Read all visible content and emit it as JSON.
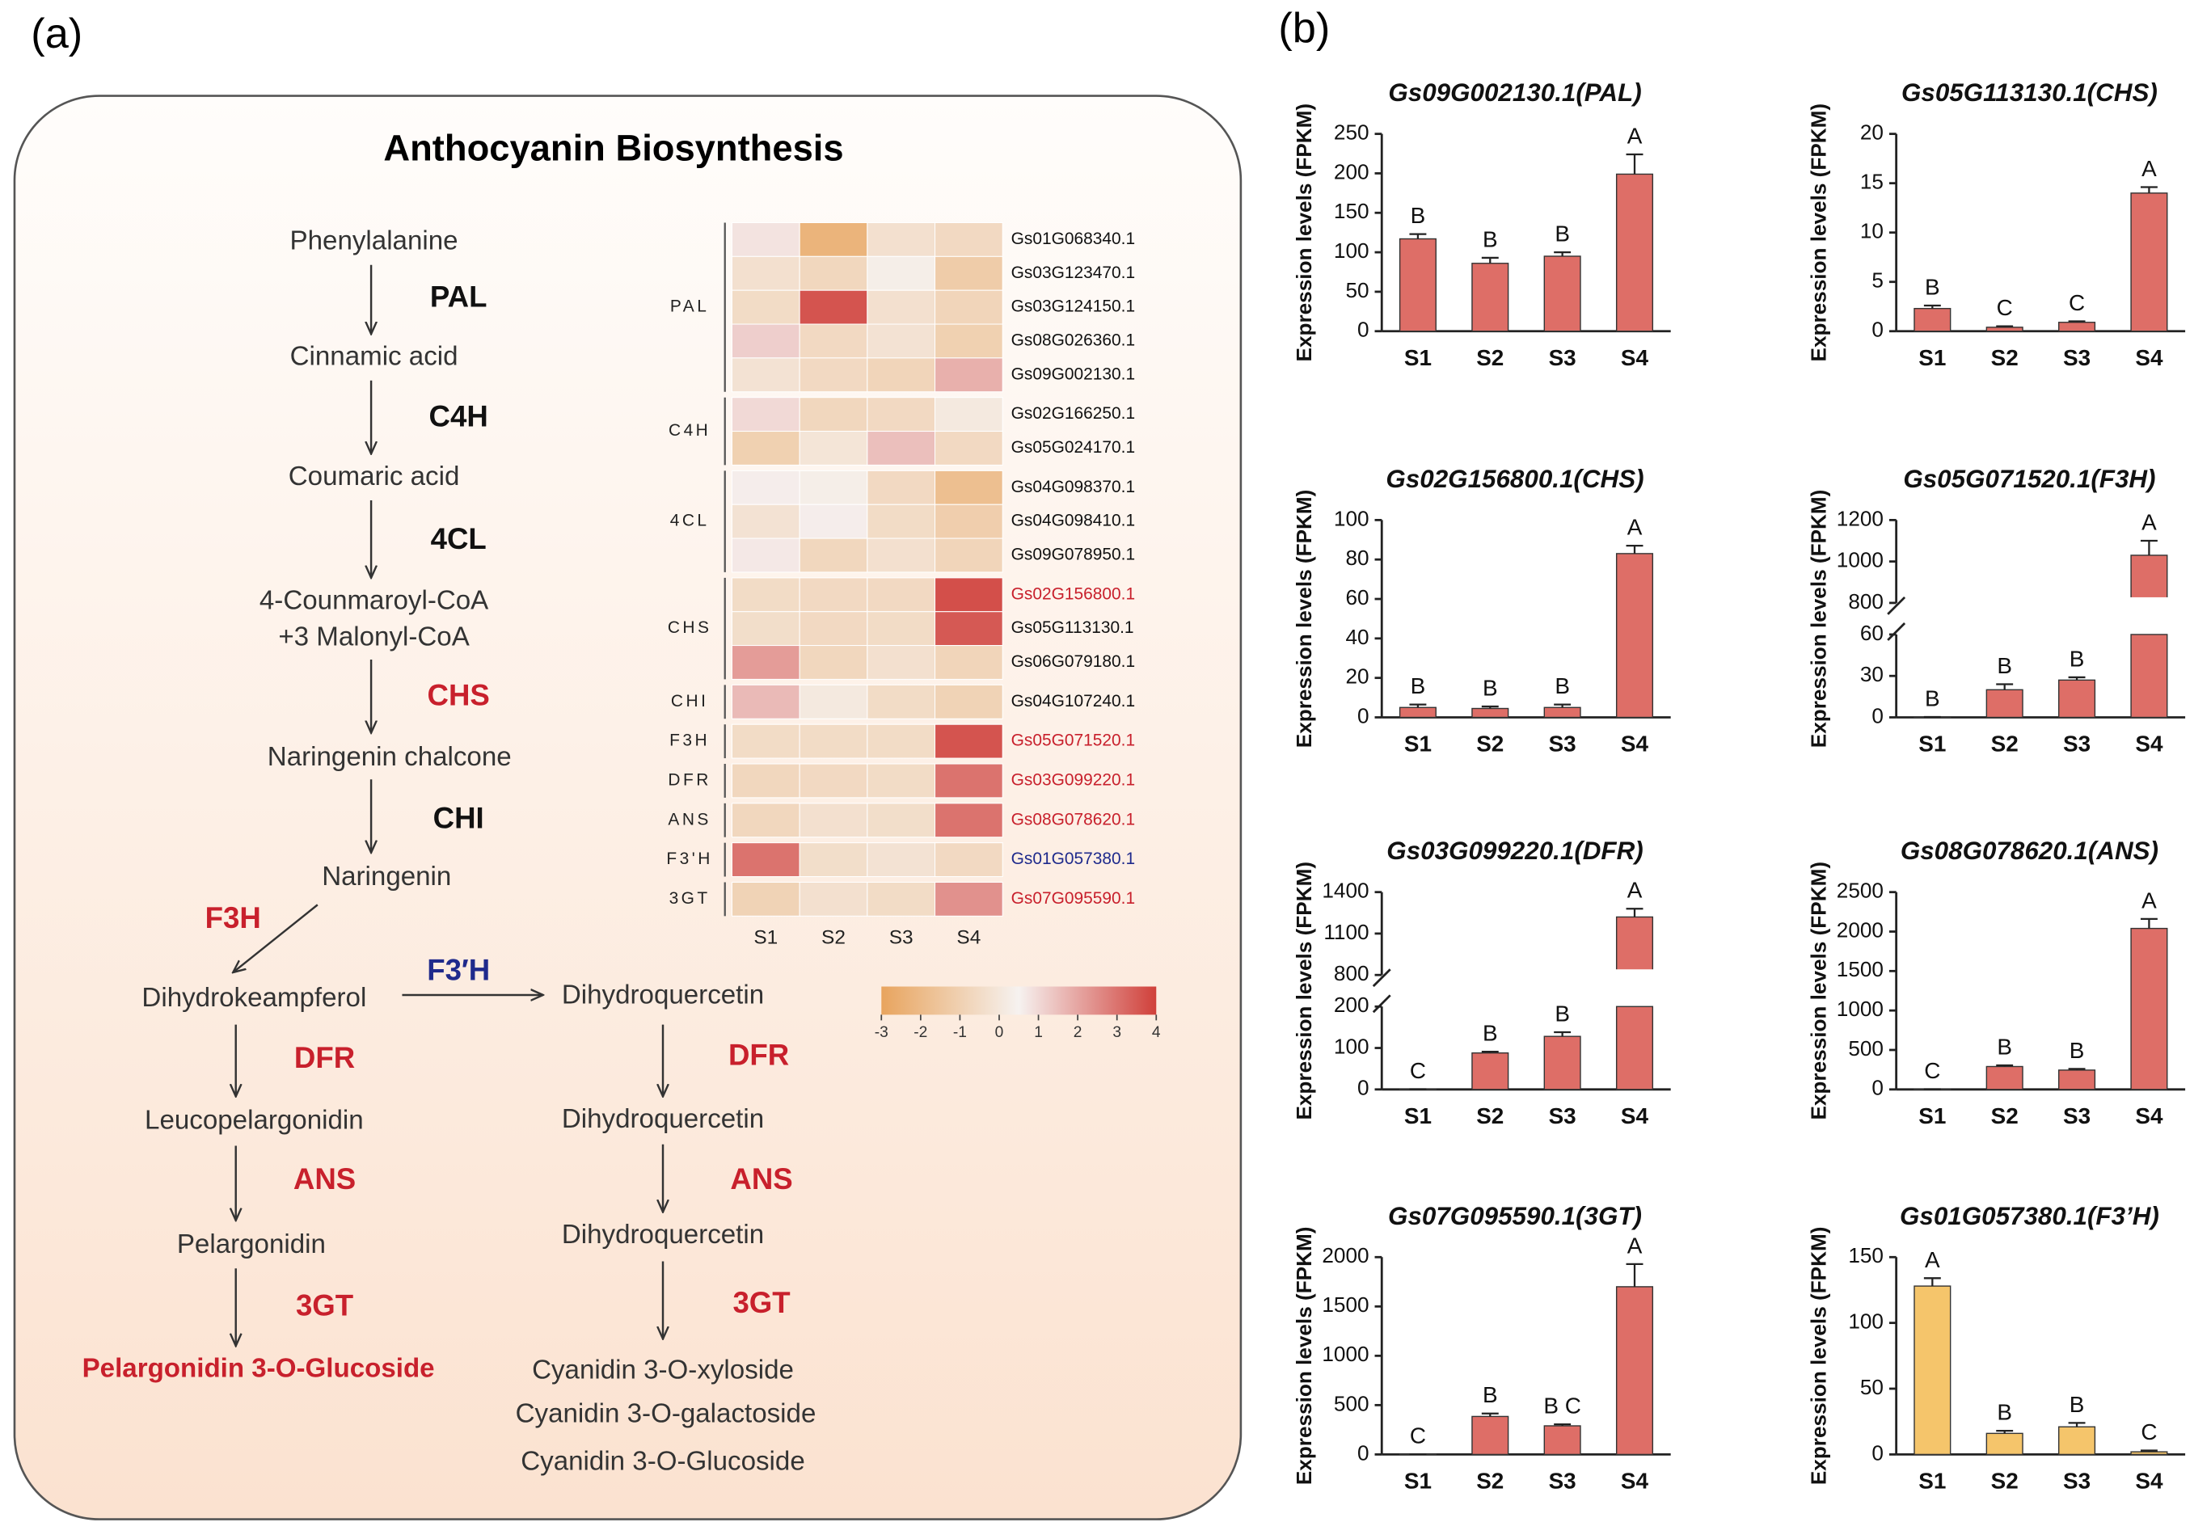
{
  "panel_labels": [
    "(a)",
    "(b)"
  ],
  "pathway": {
    "title": "Anthocyanin Biosynthesis",
    "compounds": [
      "Phenylalanine",
      "Cinnamic acid",
      "Coumaric acid",
      "4-Counmaroyl-CoA",
      "+3 Malonyl-CoA",
      "Naringenin chalcone",
      "Naringenin",
      "Dihydrokeampferol",
      "Dihydroquercetin",
      "Leucopelargonidin",
      "Pelargonidin",
      "Pelargonidin 3-O-Glucoside",
      "Dihydroquercetin",
      "Dihydroquercetin",
      "Cyanidin 3-O-xyloside",
      "Cyanidin 3-O-galactoside",
      "Cyanidin 3-O-Glucoside"
    ],
    "enzymes": [
      {
        "label": "PAL",
        "color": "#111111"
      },
      {
        "label": "C4H",
        "color": "#111111"
      },
      {
        "label": "4CL",
        "color": "#111111"
      },
      {
        "label": "CHS",
        "color": "#c8202c"
      },
      {
        "label": "CHI",
        "color": "#111111"
      },
      {
        "label": "F3H",
        "color": "#c8202c"
      },
      {
        "label": "F3′H",
        "color": "#1f2a8c"
      },
      {
        "label": "DFR",
        "color": "#c8202c"
      },
      {
        "label": "ANS",
        "color": "#c8202c"
      },
      {
        "label": "3GT",
        "color": "#c8202c"
      },
      {
        "label": "DFR",
        "color": "#c8202c"
      },
      {
        "label": "ANS",
        "color": "#c8202c"
      },
      {
        "label": "3GT",
        "color": "#c8202c"
      }
    ]
  },
  "chart_data": [
    {
      "type": "heatmap",
      "columns": [
        "S1",
        "S2",
        "S3",
        "S4"
      ],
      "groups": [
        {
          "label": "PAL",
          "genes": [
            "Gs01G068340.1",
            "Gs03G123470.1",
            "Gs03G124150.1",
            "Gs08G026360.1",
            "Gs09G002130.1"
          ],
          "gene_color": "#111111",
          "values": [
            [
              0.8,
              -2.3,
              -0.3,
              -0.6
            ],
            [
              -0.3,
              -0.7,
              0.3,
              -1.2
            ],
            [
              -0.5,
              3.6,
              -0.3,
              -0.8
            ],
            [
              1.2,
              -0.6,
              -0.2,
              -1.0
            ],
            [
              -0.2,
              -0.6,
              -0.8,
              1.8
            ]
          ]
        },
        {
          "label": "C4H",
          "genes": [
            "Gs02G166250.1",
            "Gs05G024170.1"
          ],
          "gene_color": "#111111",
          "values": [
            [
              1.0,
              -0.7,
              -0.6,
              0.1
            ],
            [
              -1.0,
              -0.1,
              1.5,
              -0.6
            ]
          ]
        },
        {
          "label": "4CL",
          "genes": [
            "Gs04G098370.1",
            "Gs04G098410.1",
            "Gs09G078950.1"
          ],
          "gene_color": "#111111",
          "values": [
            [
              0.6,
              0.3,
              -0.6,
              -1.8
            ],
            [
              -0.2,
              0.6,
              -0.5,
              -1.1
            ],
            [
              0.7,
              -0.7,
              -0.3,
              -0.8
            ]
          ]
        },
        {
          "label": "CHS",
          "genes": [
            "Gs02G156800.1",
            "Gs05G113130.1",
            "Gs06G079180.1"
          ],
          "gene_colors": [
            "#c8202c",
            "#111111",
            "#111111"
          ],
          "values": [
            [
              -0.5,
              -0.6,
              -0.6,
              3.7
            ],
            [
              -0.4,
              -0.6,
              -0.5,
              3.5
            ],
            [
              2.2,
              -0.7,
              -0.3,
              -0.8
            ]
          ]
        },
        {
          "label": "CHI",
          "genes": [
            "Gs04G107240.1"
          ],
          "gene_color": "#111111",
          "values": [
            [
              1.6,
              0.1,
              -0.5,
              -0.9
            ]
          ]
        },
        {
          "label": "F3H",
          "genes": [
            "Gs05G071520.1"
          ],
          "gene_color": "#c8202c",
          "values": [
            [
              -0.5,
              -0.5,
              -0.5,
              3.6
            ]
          ]
        },
        {
          "label": "DFR",
          "genes": [
            "Gs03G099220.1"
          ],
          "gene_color": "#c8202c",
          "values": [
            [
              -0.7,
              -0.6,
              -0.5,
              3.0
            ]
          ]
        },
        {
          "label": "ANS",
          "genes": [
            "Gs08G078620.1"
          ],
          "gene_color": "#c8202c",
          "values": [
            [
              -0.7,
              -0.3,
              -0.4,
              3.0
            ]
          ]
        },
        {
          "label": "F3'H",
          "genes": [
            "Gs01G057380.1"
          ],
          "gene_color": "#1f2a8c",
          "values": [
            [
              3.0,
              -0.4,
              -0.2,
              -0.6
            ]
          ]
        },
        {
          "label": "3GT",
          "genes": [
            "Gs07G095590.1"
          ],
          "gene_color": "#c8202c",
          "values": [
            [
              -0.9,
              -0.3,
              -0.5,
              2.4
            ]
          ]
        }
      ],
      "colorbar": {
        "lim": [
          -3,
          4
        ],
        "ticks": [
          -3,
          -2,
          -1,
          0,
          1,
          2,
          3,
          4
        ],
        "colors": [
          "#e8a45e",
          "#f6f2f0",
          "#d0403a"
        ]
      }
    },
    {
      "type": "bar",
      "title": "Gs09G002130.1(PAL)",
      "ylabel": "Expression levels (FPKM)",
      "categories": [
        "S1",
        "S2",
        "S3",
        "S4"
      ],
      "values": [
        117,
        86,
        95,
        199
      ],
      "errors": [
        6,
        7,
        5,
        25
      ],
      "letters": [
        "B",
        "B",
        "B",
        "A"
      ],
      "color": "#de6e67",
      "ylim": [
        0,
        250
      ],
      "yticks": [
        0,
        50,
        100,
        150,
        200,
        250
      ]
    },
    {
      "type": "bar",
      "title": "Gs05G113130.1(CHS)",
      "ylabel": "Expression levels (FPKM)",
      "categories": [
        "S1",
        "S2",
        "S3",
        "S4"
      ],
      "values": [
        2.3,
        0.4,
        0.9,
        14
      ],
      "errors": [
        0.3,
        0.1,
        0.1,
        0.6
      ],
      "letters": [
        "B",
        "C",
        "C",
        "A"
      ],
      "color": "#de6e67",
      "ylim": [
        0,
        20
      ],
      "yticks": [
        0,
        5,
        10,
        15,
        20
      ]
    },
    {
      "type": "bar",
      "title": "Gs02G156800.1(CHS)",
      "ylabel": "Expression levels (FPKM)",
      "categories": [
        "S1",
        "S2",
        "S3",
        "S4"
      ],
      "values": [
        5,
        4.5,
        5,
        83
      ],
      "errors": [
        1.5,
        1,
        1.5,
        4
      ],
      "letters": [
        "B",
        "B",
        "B",
        "A"
      ],
      "color": "#de6e67",
      "ylim": [
        0,
        100
      ],
      "yticks": [
        0,
        20,
        40,
        60,
        80,
        100
      ]
    },
    {
      "type": "bar",
      "title": "Gs05G071520.1(F3H)",
      "ylabel": "Expression levels (FPKM)",
      "categories": [
        "S1",
        "S2",
        "S3",
        "S4"
      ],
      "values": [
        0.3,
        20,
        27,
        1030
      ],
      "errors": [
        0,
        4,
        2,
        70
      ],
      "letters": [
        "B",
        "B",
        "B",
        "A"
      ],
      "color": "#de6e67",
      "segments": [
        {
          "ylim": [
            0,
            60
          ],
          "yticks": [
            0,
            30,
            60
          ]
        },
        {
          "ylim": [
            800,
            1200
          ],
          "yticks": [
            800,
            1000,
            1200
          ]
        }
      ]
    },
    {
      "type": "bar",
      "title": "Gs03G099220.1(DFR)",
      "ylabel": "Expression levels (FPKM)",
      "categories": [
        "S1",
        "S2",
        "S3",
        "S4"
      ],
      "values": [
        0.5,
        88,
        128,
        1220
      ],
      "errors": [
        0,
        3,
        10,
        60
      ],
      "letters": [
        "C",
        "B",
        "B",
        "A"
      ],
      "color": "#de6e67",
      "segments": [
        {
          "ylim": [
            0,
            200
          ],
          "yticks": [
            0,
            100,
            200
          ]
        },
        {
          "ylim": [
            800,
            1400
          ],
          "yticks": [
            800,
            1100,
            1400
          ]
        }
      ]
    },
    {
      "type": "bar",
      "title": "Gs08G078620.1(ANS)",
      "ylabel": "Expression levels (FPKM)",
      "categories": [
        "S1",
        "S2",
        "S3",
        "S4"
      ],
      "values": [
        3,
        290,
        245,
        2040
      ],
      "errors": [
        0,
        15,
        15,
        120
      ],
      "letters": [
        "C",
        "B",
        "B",
        "A"
      ],
      "color": "#de6e67",
      "ylim": [
        0,
        2500
      ],
      "yticks": [
        0,
        500,
        1000,
        1500,
        2000,
        2500
      ]
    },
    {
      "type": "bar",
      "title": "Gs07G095590.1(3GT)",
      "ylabel": "Expression levels (FPKM)",
      "categories": [
        "S1",
        "S2",
        "S3",
        "S4"
      ],
      "values": [
        2,
        385,
        290,
        1700
      ],
      "errors": [
        0,
        30,
        15,
        230
      ],
      "letters": [
        "C",
        "B",
        "B C",
        "A"
      ],
      "color": "#de6e67",
      "ylim": [
        0,
        2000
      ],
      "yticks": [
        0,
        500,
        1000,
        1500,
        2000
      ]
    },
    {
      "type": "bar",
      "title": "Gs01G057380.1(F3’H)",
      "ylabel": "Expression levels (FPKM)",
      "categories": [
        "S1",
        "S2",
        "S3",
        "S4"
      ],
      "values": [
        128,
        16,
        21,
        2
      ],
      "errors": [
        6,
        2,
        3,
        1
      ],
      "letters": [
        "A",
        "B",
        "B",
        "C"
      ],
      "color": "#f5c56b",
      "ylim": [
        0,
        150
      ],
      "yticks": [
        0,
        50,
        100,
        150
      ]
    }
  ]
}
